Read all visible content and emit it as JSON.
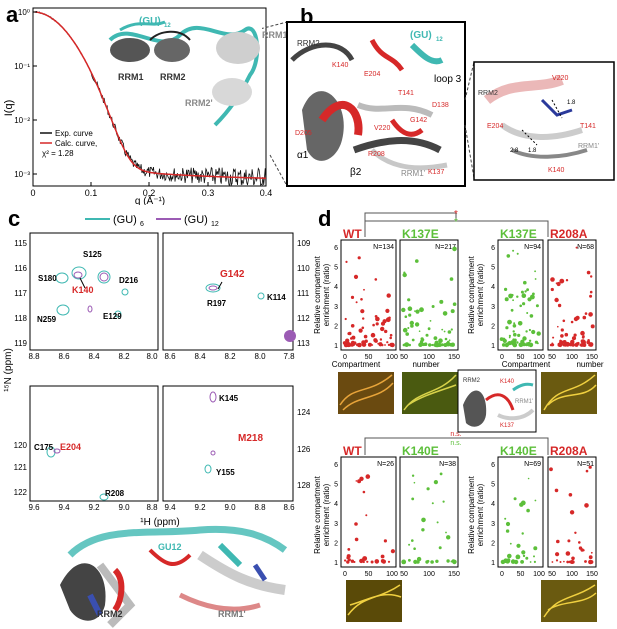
{
  "panel_letters": {
    "a": "a",
    "b": "b",
    "c": "c",
    "d": "d"
  },
  "colors": {
    "cyan": "#3fb8b2",
    "red": "#d62828",
    "green": "#5cbf3a",
    "purple": "#9b5bb4",
    "black": "#000000",
    "grey": "#888888"
  },
  "panel_a": {
    "ylabel": "I(q)",
    "xlabel": "q (Å⁻¹)",
    "xticks": [
      "0",
      "0.1",
      "0.2",
      "0.3",
      "0.4"
    ],
    "yticks": [
      "10⁰",
      "10⁻¹",
      "10⁻²",
      "10⁻³"
    ],
    "legend": {
      "exp": "Exp. curve",
      "calc": "Calc. curve,",
      "chi": "χ² = 1.28"
    },
    "labels": {
      "gu": "(GU)",
      "gu_sub": "12",
      "rrm1": "RRM1",
      "rrm2": "RRM2",
      "rrm1p": "RRM1'",
      "rrm2p": "RRM2'"
    }
  },
  "panel_b": {
    "labels": {
      "rrm2": "RRM2",
      "gu": "(GU)",
      "gu_sub": "12",
      "loop3": "loop 3",
      "k140": "K140",
      "e204": "E204",
      "t141": "T141",
      "d138": "D138",
      "g142": "G142",
      "v220": "V220",
      "d205": "D205",
      "r208": "R208",
      "alpha1": "α1",
      "beta2": "β2",
      "rrm1p": "RRM1'",
      "k137": "K137"
    },
    "inset": {
      "rrm2": "RRM2",
      "v220": "V220",
      "e204": "E204",
      "t141": "T141",
      "rrm1p": "RRM1'",
      "k140": "K140",
      "d1": "1.8",
      "d2": "2.8",
      "d3": "1.8"
    }
  },
  "panel_c": {
    "legend": {
      "gu6": "(GU)",
      "gu6_sub": "6",
      "gu12": "(GU)",
      "gu12_sub": "12"
    },
    "ylabel": "¹⁵N (ppm)",
    "xlabel": "¹H (ppm)",
    "p1": {
      "xticks": [
        "8.8",
        "8.6",
        "8.4",
        "8.2",
        "8.0"
      ],
      "yticks": [
        "115",
        "116",
        "117",
        "118",
        "119"
      ],
      "labels": [
        "S125",
        "S180",
        "K140",
        "D216",
        "N259",
        "E129"
      ]
    },
    "p2": {
      "xticks": [
        "8.6",
        "8.4",
        "8.2",
        "8.0",
        "7.8"
      ],
      "yticks": [
        "109",
        "110",
        "111",
        "112",
        "113"
      ],
      "labels": [
        "G142",
        "K114",
        "R197"
      ]
    },
    "p3": {
      "xticks": [
        "9.6",
        "9.4",
        "9.2",
        "9.0",
        "8.8"
      ],
      "yticks": [
        "120",
        "121",
        "122"
      ],
      "labels": [
        "C175",
        "E204",
        "R208"
      ]
    },
    "p4": {
      "xticks": [
        "9.4",
        "9.2",
        "9.0",
        "8.8",
        "8.6"
      ],
      "yticks": [
        "124",
        "126",
        "128"
      ],
      "labels": [
        "K145",
        "M218",
        "Y155"
      ]
    },
    "struct": {
      "gu12": "GU12",
      "rrm2": "RRM2",
      "rrm1p": "RRM1'"
    }
  },
  "panel_d": {
    "ylabel1": "Relative compartment",
    "ylabel2": "enrichment (ratio)",
    "xlabel1": "Compartment",
    "xlabel2": "number",
    "yticks": [
      "1",
      "2",
      "3",
      "4",
      "5",
      "6"
    ],
    "xticks": [
      "0",
      "50",
      "100",
      "150"
    ],
    "top": [
      {
        "title": "WT",
        "n": "N=134",
        "color": "red"
      },
      {
        "title": "K137E",
        "n": "N=217",
        "color": "green"
      },
      {
        "title": "K137E",
        "n": "N=94",
        "color": "green"
      },
      {
        "title": "R208A",
        "n": "N=68",
        "color": "red"
      }
    ],
    "bottom": [
      {
        "title": "WT",
        "n": "N=26",
        "color": "red"
      },
      {
        "title": "K140E",
        "n": "N=38",
        "color": "green"
      },
      {
        "title": "K140E",
        "n": "N=69",
        "color": "green"
      },
      {
        "title": "R208A",
        "n": "N=51",
        "color": "red"
      }
    ],
    "sig_top": [
      "*",
      "*"
    ],
    "sig_bottom": [
      "n.s.",
      "n.s."
    ],
    "inset": {
      "rrm2": "RRM2",
      "k140": "K140",
      "rrm1p": "RRM1'",
      "k137": "K137"
    }
  }
}
